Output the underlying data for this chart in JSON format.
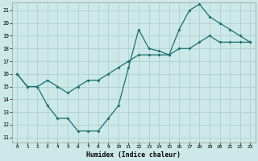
{
  "xlabel": "Humidex (Indice chaleur)",
  "bg_color": "#cce8e8",
  "grid_color": "#aacccc",
  "line_color": "#1a7070",
  "xlim": [
    -0.5,
    23.5
  ],
  "ylim": [
    10.6,
    21.6
  ],
  "yticks": [
    11,
    12,
    13,
    14,
    15,
    16,
    17,
    18,
    19,
    20,
    21
  ],
  "xticks": [
    0,
    1,
    2,
    3,
    4,
    5,
    6,
    7,
    8,
    9,
    10,
    11,
    12,
    13,
    14,
    15,
    16,
    17,
    18,
    19,
    20,
    21,
    22,
    23
  ],
  "line1_x": [
    0,
    1,
    2,
    3,
    4,
    5,
    6,
    7,
    8,
    9,
    10,
    11,
    12,
    13,
    14,
    15,
    16,
    17,
    18,
    19,
    20,
    21,
    22,
    23
  ],
  "line1_y": [
    16,
    15,
    15,
    15.5,
    15,
    14.5,
    15,
    15.5,
    15.5,
    16,
    16.5,
    17,
    17.5,
    17.5,
    17.5,
    17.5,
    18,
    18,
    18.5,
    19,
    18.5,
    18.5,
    18.5,
    18.5
  ],
  "line2_x": [
    0,
    1,
    2,
    3,
    4,
    5,
    6,
    7,
    8,
    9,
    10,
    11,
    12,
    13,
    14,
    15,
    16,
    17,
    18,
    19,
    20,
    21,
    22,
    23
  ],
  "line2_y": [
    16,
    15,
    15,
    13.5,
    12.5,
    12.5,
    11.5,
    11.5,
    11.5,
    12.5,
    13.5,
    16.5,
    19.5,
    18,
    17.8,
    17.5,
    19.5,
    21,
    21.5,
    20.5,
    20,
    19.5,
    19,
    18.5
  ]
}
